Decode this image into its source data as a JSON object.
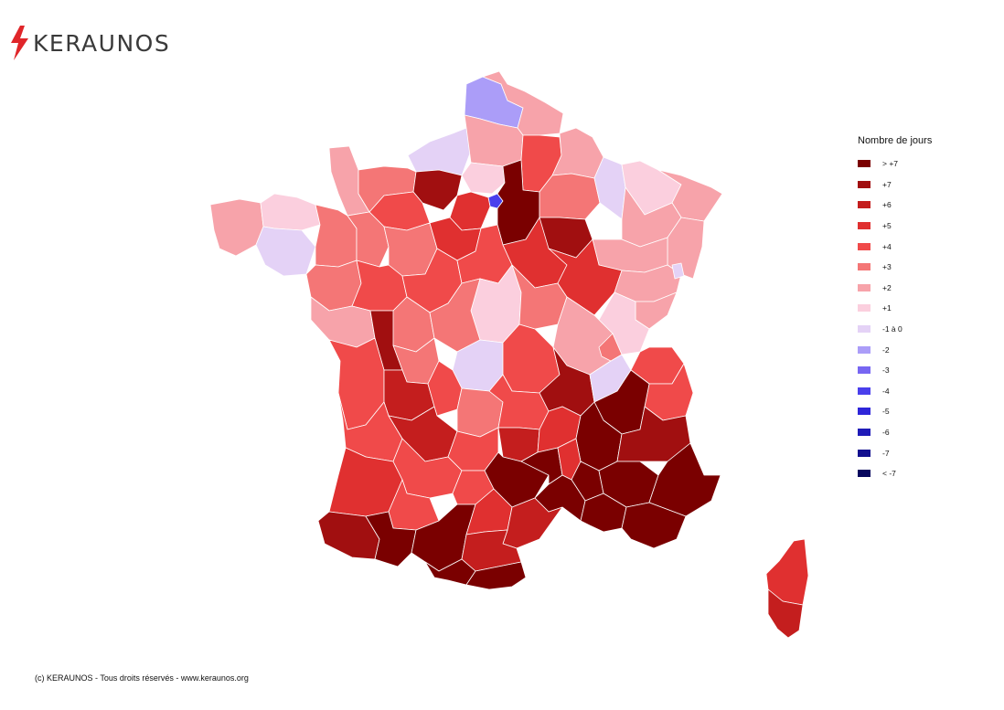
{
  "brand": {
    "name": "KERAUNOS",
    "accent": "#e0262a"
  },
  "legend": {
    "title": "Nombre de jours",
    "items": [
      {
        "label": "> +7",
        "color": "#7a0000"
      },
      {
        "label": "+7",
        "color": "#a10f10"
      },
      {
        "label": "+6",
        "color": "#c41e1e"
      },
      {
        "label": "+5",
        "color": "#e03030"
      },
      {
        "label": "+4",
        "color": "#f04a4a"
      },
      {
        "label": "+3",
        "color": "#f47676"
      },
      {
        "label": "+2",
        "color": "#f7a3aa"
      },
      {
        "label": "+1",
        "color": "#fbcfde"
      },
      {
        "label": "-1 à 0",
        "color": "#e4d2f6"
      },
      {
        "label": "-2",
        "color": "#ab9df8"
      },
      {
        "label": "-3",
        "color": "#7766f2"
      },
      {
        "label": "-4",
        "color": "#4a3fec"
      },
      {
        "label": "-5",
        "color": "#2e25d9"
      },
      {
        "label": "-6",
        "color": "#1f1bb8"
      },
      {
        "label": "-7",
        "color": "#12108f"
      },
      {
        "label": "< -7",
        "color": "#07075e"
      }
    ]
  },
  "footer": {
    "text": "(c) KERAUNOS - Tous droits réservés - www.keraunos.org"
  }
}
